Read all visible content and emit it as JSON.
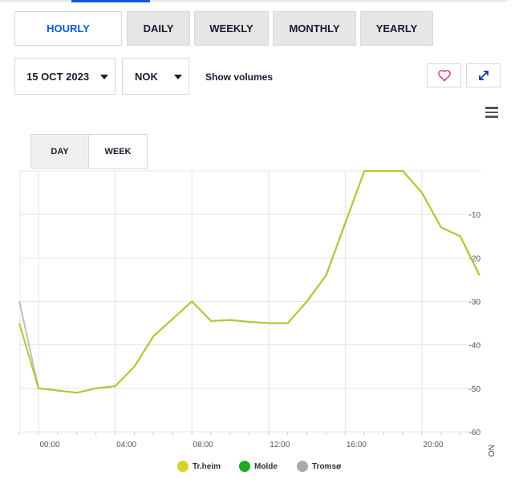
{
  "tabs": [
    {
      "label": "HOURLY",
      "active": true
    },
    {
      "label": "DAILY",
      "active": false
    },
    {
      "label": "WEEKLY",
      "active": false
    },
    {
      "label": "MONTHLY",
      "active": false
    },
    {
      "label": "YEARLY",
      "active": false
    }
  ],
  "date_select": {
    "value": "15 OCT 2023"
  },
  "currency_select": {
    "value": "NOK"
  },
  "show_volumes_label": "Show volumes",
  "icons": {
    "favorite": "heart-icon",
    "expand": "expand-icon",
    "menu": "hamburger-menu-icon"
  },
  "range_buttons": [
    {
      "label": "DAY",
      "active": true
    },
    {
      "label": "WEEK",
      "active": false
    }
  ],
  "colors": {
    "accent": "#0b5bd3",
    "heart": "#d9365a"
  },
  "chart_data": {
    "type": "line",
    "x": [
      "23:00",
      "00:00",
      "01:00",
      "02:00",
      "03:00",
      "04:00",
      "05:00",
      "06:00",
      "07:00",
      "08:00",
      "09:00",
      "10:00",
      "11:00",
      "12:00",
      "13:00",
      "14:00",
      "15:00",
      "16:00",
      "17:00",
      "18:00",
      "19:00",
      "20:00",
      "21:00",
      "22:00",
      "23:00"
    ],
    "series": [
      {
        "name": "Tr.heim",
        "color": "#d4d42a",
        "values": [
          -35,
          -50,
          -50.5,
          -51,
          -50,
          -49.5,
          -45,
          -38,
          -34,
          -30,
          -34.5,
          -34.3,
          -34.7,
          -35,
          -35,
          -30,
          -24,
          -12,
          0,
          0,
          0,
          -5,
          -13,
          -15,
          -24
        ]
      },
      {
        "name": "Molde",
        "color": "#22aa22",
        "values": [
          -35,
          -50,
          -50.5,
          -51,
          -50,
          -49.5,
          -45,
          -38,
          -34,
          -30,
          -34.5,
          -34.3,
          -34.7,
          -35,
          -35,
          -30,
          -24,
          -12,
          0,
          0,
          0,
          -5,
          -13,
          -15,
          -24
        ]
      },
      {
        "name": "Tromsø",
        "color": "#aaaaaa",
        "values": [
          -30,
          -50,
          -50.5,
          -51,
          -50,
          -49.5,
          -45,
          -38,
          -34,
          -30,
          -34.5,
          -34.3,
          -34.7,
          -35,
          -35,
          -30,
          -24,
          -12,
          0,
          0,
          0,
          -5,
          -13,
          -15,
          -24
        ]
      }
    ],
    "x_tick_labels": [
      "00:00",
      "04:00",
      "08:00",
      "12:00",
      "16:00",
      "20:00"
    ],
    "y_tick_labels": [
      "-10",
      "-20",
      "-30",
      "-40",
      "-50",
      "-60"
    ],
    "ylabel": "NOK/MWh",
    "ylim": [
      -60,
      0
    ],
    "grid": true,
    "legend_position": "bottom"
  }
}
